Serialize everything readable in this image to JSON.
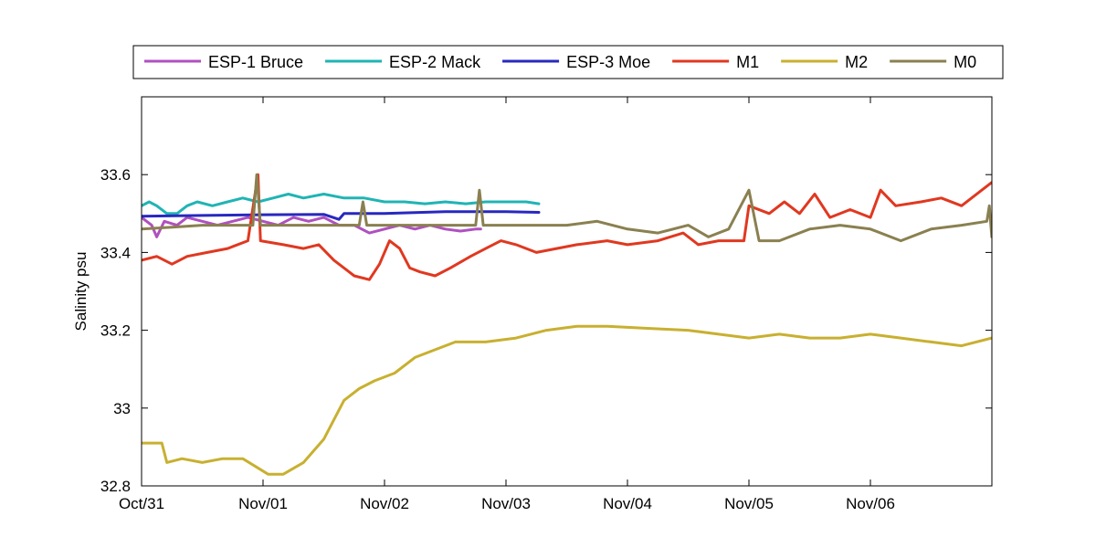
{
  "chart_data": {
    "type": "line",
    "title": "",
    "xlabel": "",
    "ylabel": "Salinity psu",
    "xlim": [
      "2000-10-31",
      "2000-11-07"
    ],
    "ylim": [
      32.8,
      33.8
    ],
    "x_ticks": [
      "Oct/31",
      "Nov/01",
      "Nov/02",
      "Nov/03",
      "Nov/04",
      "Nov/05",
      "Nov/06"
    ],
    "y_ticks": [
      32.8,
      33.0,
      33.2,
      33.4,
      33.6
    ],
    "y_tick_labels": [
      "32.8",
      "33",
      "33.2",
      "33.4",
      "33.6"
    ],
    "grid": false,
    "legend": {
      "placement": "top",
      "orientation": "horizontal"
    },
    "series": [
      {
        "name": "ESP-1 Bruce",
        "color": "#b050c0",
        "points": [
          [
            "2000-10-31T00:00",
            33.49
          ],
          [
            "2000-10-31T02:00",
            33.47
          ],
          [
            "2000-10-31T03:00",
            33.44
          ],
          [
            "2000-10-31T04:30",
            33.48
          ],
          [
            "2000-10-31T07:00",
            33.47
          ],
          [
            "2000-10-31T09:00",
            33.49
          ],
          [
            "2000-10-31T12:00",
            33.48
          ],
          [
            "2000-10-31T15:00",
            33.47
          ],
          [
            "2000-10-31T18:00",
            33.48
          ],
          [
            "2000-10-31T21:00",
            33.49
          ],
          [
            "2000-11-01T00:00",
            33.48
          ],
          [
            "2000-11-01T03:00",
            33.47
          ],
          [
            "2000-11-01T06:00",
            33.49
          ],
          [
            "2000-11-01T09:00",
            33.48
          ],
          [
            "2000-11-01T12:00",
            33.49
          ],
          [
            "2000-11-01T15:00",
            33.47
          ],
          [
            "2000-11-01T18:00",
            33.47
          ],
          [
            "2000-11-01T21:00",
            33.45
          ],
          [
            "2000-11-02T00:00",
            33.46
          ],
          [
            "2000-11-02T03:00",
            33.47
          ],
          [
            "2000-11-02T06:00",
            33.46
          ],
          [
            "2000-11-02T09:00",
            33.47
          ],
          [
            "2000-11-02T12:00",
            33.46
          ],
          [
            "2000-11-02T15:00",
            33.455
          ],
          [
            "2000-11-02T18:00",
            33.46
          ],
          [
            "2000-11-02T19:00",
            33.46
          ]
        ]
      },
      {
        "name": "ESP-2 Mack",
        "color": "#20b4b4",
        "points": [
          [
            "2000-10-31T00:00",
            33.52
          ],
          [
            "2000-10-31T01:30",
            33.53
          ],
          [
            "2000-10-31T03:00",
            33.52
          ],
          [
            "2000-10-31T05:00",
            33.5
          ],
          [
            "2000-10-31T07:00",
            33.5
          ],
          [
            "2000-10-31T09:00",
            33.52
          ],
          [
            "2000-10-31T11:00",
            33.53
          ],
          [
            "2000-10-31T14:00",
            33.52
          ],
          [
            "2000-10-31T17:00",
            33.53
          ],
          [
            "2000-10-31T20:00",
            33.54
          ],
          [
            "2000-10-31T23:00",
            33.53
          ],
          [
            "2000-11-01T02:00",
            33.54
          ],
          [
            "2000-11-01T05:00",
            33.55
          ],
          [
            "2000-11-01T08:00",
            33.54
          ],
          [
            "2000-11-01T12:00",
            33.55
          ],
          [
            "2000-11-01T16:00",
            33.54
          ],
          [
            "2000-11-01T20:00",
            33.54
          ],
          [
            "2000-11-02T00:00",
            33.53
          ],
          [
            "2000-11-02T04:00",
            33.53
          ],
          [
            "2000-11-02T08:00",
            33.525
          ],
          [
            "2000-11-02T12:00",
            33.53
          ],
          [
            "2000-11-02T16:00",
            33.525
          ],
          [
            "2000-11-02T20:00",
            33.53
          ],
          [
            "2000-11-03T00:00",
            33.53
          ],
          [
            "2000-11-03T04:00",
            33.53
          ],
          [
            "2000-11-03T06:30",
            33.525
          ]
        ]
      },
      {
        "name": "ESP-3 Moe",
        "color": "#2828c0",
        "points": [
          [
            "2000-10-31T00:00",
            33.493
          ],
          [
            "2000-10-31T12:00",
            33.495
          ],
          [
            "2000-11-01T00:00",
            33.497
          ],
          [
            "2000-11-01T12:00",
            33.498
          ],
          [
            "2000-11-01T15:00",
            33.485
          ],
          [
            "2000-11-01T16:00",
            33.5
          ],
          [
            "2000-11-02T00:00",
            33.5
          ],
          [
            "2000-11-02T12:00",
            33.505
          ],
          [
            "2000-11-03T00:00",
            33.505
          ],
          [
            "2000-11-03T06:30",
            33.503
          ]
        ]
      },
      {
        "name": "M1",
        "color": "#e03820",
        "points": [
          [
            "2000-10-31T00:00",
            33.38
          ],
          [
            "2000-10-31T03:00",
            33.39
          ],
          [
            "2000-10-31T06:00",
            33.37
          ],
          [
            "2000-10-31T09:00",
            33.39
          ],
          [
            "2000-10-31T13:00",
            33.4
          ],
          [
            "2000-10-31T17:00",
            33.41
          ],
          [
            "2000-10-31T21:00",
            33.43
          ],
          [
            "2000-10-31T23:00",
            33.6
          ],
          [
            "2000-10-31T23:30",
            33.43
          ],
          [
            "2000-11-01T04:00",
            33.42
          ],
          [
            "2000-11-01T08:00",
            33.41
          ],
          [
            "2000-11-01T11:00",
            33.42
          ],
          [
            "2000-11-01T14:00",
            33.38
          ],
          [
            "2000-11-01T18:00",
            33.34
          ],
          [
            "2000-11-01T21:00",
            33.33
          ],
          [
            "2000-11-01T23:00",
            33.37
          ],
          [
            "2000-11-02T01:00",
            33.43
          ],
          [
            "2000-11-02T03:00",
            33.41
          ],
          [
            "2000-11-02T05:00",
            33.36
          ],
          [
            "2000-11-02T07:00",
            33.35
          ],
          [
            "2000-11-02T10:00",
            33.34
          ],
          [
            "2000-11-02T13:00",
            33.36
          ],
          [
            "2000-11-02T17:00",
            33.39
          ],
          [
            "2000-11-02T20:00",
            33.41
          ],
          [
            "2000-11-02T23:00",
            33.43
          ],
          [
            "2000-11-03T02:00",
            33.42
          ],
          [
            "2000-11-03T06:00",
            33.4
          ],
          [
            "2000-11-03T10:00",
            33.41
          ],
          [
            "2000-11-03T14:00",
            33.42
          ],
          [
            "2000-11-03T20:00",
            33.43
          ],
          [
            "2000-11-04T00:00",
            33.42
          ],
          [
            "2000-11-04T06:00",
            33.43
          ],
          [
            "2000-11-04T11:00",
            33.45
          ],
          [
            "2000-11-04T14:00",
            33.42
          ],
          [
            "2000-11-04T18:00",
            33.43
          ],
          [
            "2000-11-04T23:00",
            33.43
          ],
          [
            "2000-11-05T00:00",
            33.52
          ],
          [
            "2000-11-05T04:00",
            33.5
          ],
          [
            "2000-11-05T07:00",
            33.53
          ],
          [
            "2000-11-05T10:00",
            33.5
          ],
          [
            "2000-11-05T13:00",
            33.55
          ],
          [
            "2000-11-05T16:00",
            33.49
          ],
          [
            "2000-11-05T20:00",
            33.51
          ],
          [
            "2000-11-06T00:00",
            33.49
          ],
          [
            "2000-11-06T02:00",
            33.56
          ],
          [
            "2000-11-06T05:00",
            33.52
          ],
          [
            "2000-11-06T10:00",
            33.53
          ],
          [
            "2000-11-06T14:00",
            33.54
          ],
          [
            "2000-11-06T18:00",
            33.52
          ],
          [
            "2000-11-06T22:00",
            33.56
          ],
          [
            "2000-11-06T23:59",
            33.58
          ]
        ]
      },
      {
        "name": "M2",
        "color": "#c8b030",
        "points": [
          [
            "2000-10-31T00:00",
            32.91
          ],
          [
            "2000-10-31T04:00",
            32.91
          ],
          [
            "2000-10-31T05:00",
            32.86
          ],
          [
            "2000-10-31T08:00",
            32.87
          ],
          [
            "2000-10-31T12:00",
            32.86
          ],
          [
            "2000-10-31T16:00",
            32.87
          ],
          [
            "2000-10-31T20:00",
            32.87
          ],
          [
            "2000-10-31T22:30",
            32.85
          ],
          [
            "2000-11-01T01:00",
            32.83
          ],
          [
            "2000-11-01T04:00",
            32.83
          ],
          [
            "2000-11-01T08:00",
            32.86
          ],
          [
            "2000-11-01T12:00",
            32.92
          ],
          [
            "2000-11-01T14:00",
            32.97
          ],
          [
            "2000-11-01T16:00",
            33.02
          ],
          [
            "2000-11-01T19:00",
            33.05
          ],
          [
            "2000-11-01T22:00",
            33.07
          ],
          [
            "2000-11-02T02:00",
            33.09
          ],
          [
            "2000-11-02T06:00",
            33.13
          ],
          [
            "2000-11-02T10:00",
            33.15
          ],
          [
            "2000-11-02T14:00",
            33.17
          ],
          [
            "2000-11-02T20:00",
            33.17
          ],
          [
            "2000-11-03T02:00",
            33.18
          ],
          [
            "2000-11-03T08:00",
            33.2
          ],
          [
            "2000-11-03T14:00",
            33.21
          ],
          [
            "2000-11-03T20:00",
            33.21
          ],
          [
            "2000-11-04T04:00",
            33.205
          ],
          [
            "2000-11-04T12:00",
            33.2
          ],
          [
            "2000-11-04T18:00",
            33.19
          ],
          [
            "2000-11-05T00:00",
            33.18
          ],
          [
            "2000-11-05T06:00",
            33.19
          ],
          [
            "2000-11-05T12:00",
            33.18
          ],
          [
            "2000-11-05T18:00",
            33.18
          ],
          [
            "2000-11-06T00:00",
            33.19
          ],
          [
            "2000-11-06T06:00",
            33.18
          ],
          [
            "2000-11-06T12:00",
            33.17
          ],
          [
            "2000-11-06T18:00",
            33.16
          ],
          [
            "2000-11-06T23:59",
            33.18
          ]
        ]
      },
      {
        "name": "M0",
        "color": "#8a8050",
        "points": [
          [
            "2000-10-31T00:00",
            33.46
          ],
          [
            "2000-10-31T06:00",
            33.465
          ],
          [
            "2000-10-31T12:00",
            33.47
          ],
          [
            "2000-10-31T18:00",
            33.47
          ],
          [
            "2000-10-31T22:00",
            33.47
          ],
          [
            "2000-10-31T22:45",
            33.6
          ],
          [
            "2000-10-31T23:30",
            33.47
          ],
          [
            "2000-11-01T06:00",
            33.47
          ],
          [
            "2000-11-01T12:00",
            33.47
          ],
          [
            "2000-11-01T19:00",
            33.47
          ],
          [
            "2000-11-01T19:45",
            33.53
          ],
          [
            "2000-11-01T20:30",
            33.47
          ],
          [
            "2000-11-02T06:00",
            33.47
          ],
          [
            "2000-11-02T18:00",
            33.47
          ],
          [
            "2000-11-02T18:45",
            33.56
          ],
          [
            "2000-11-02T19:30",
            33.47
          ],
          [
            "2000-11-03T06:00",
            33.47
          ],
          [
            "2000-11-03T12:00",
            33.47
          ],
          [
            "2000-11-03T18:00",
            33.48
          ],
          [
            "2000-11-04T00:00",
            33.46
          ],
          [
            "2000-11-04T06:00",
            33.45
          ],
          [
            "2000-11-04T12:00",
            33.47
          ],
          [
            "2000-11-04T16:00",
            33.44
          ],
          [
            "2000-11-04T20:00",
            33.46
          ],
          [
            "2000-11-05T00:00",
            33.56
          ],
          [
            "2000-11-05T02:00",
            33.43
          ],
          [
            "2000-11-05T06:00",
            33.43
          ],
          [
            "2000-11-05T12:00",
            33.46
          ],
          [
            "2000-11-05T18:00",
            33.47
          ],
          [
            "2000-11-06T00:00",
            33.46
          ],
          [
            "2000-11-06T06:00",
            33.43
          ],
          [
            "2000-11-06T12:00",
            33.46
          ],
          [
            "2000-11-06T18:00",
            33.47
          ],
          [
            "2000-11-06T23:00",
            33.48
          ],
          [
            "2000-11-06T23:30",
            33.52
          ],
          [
            "2000-11-06T23:59",
            33.44
          ]
        ]
      }
    ]
  }
}
